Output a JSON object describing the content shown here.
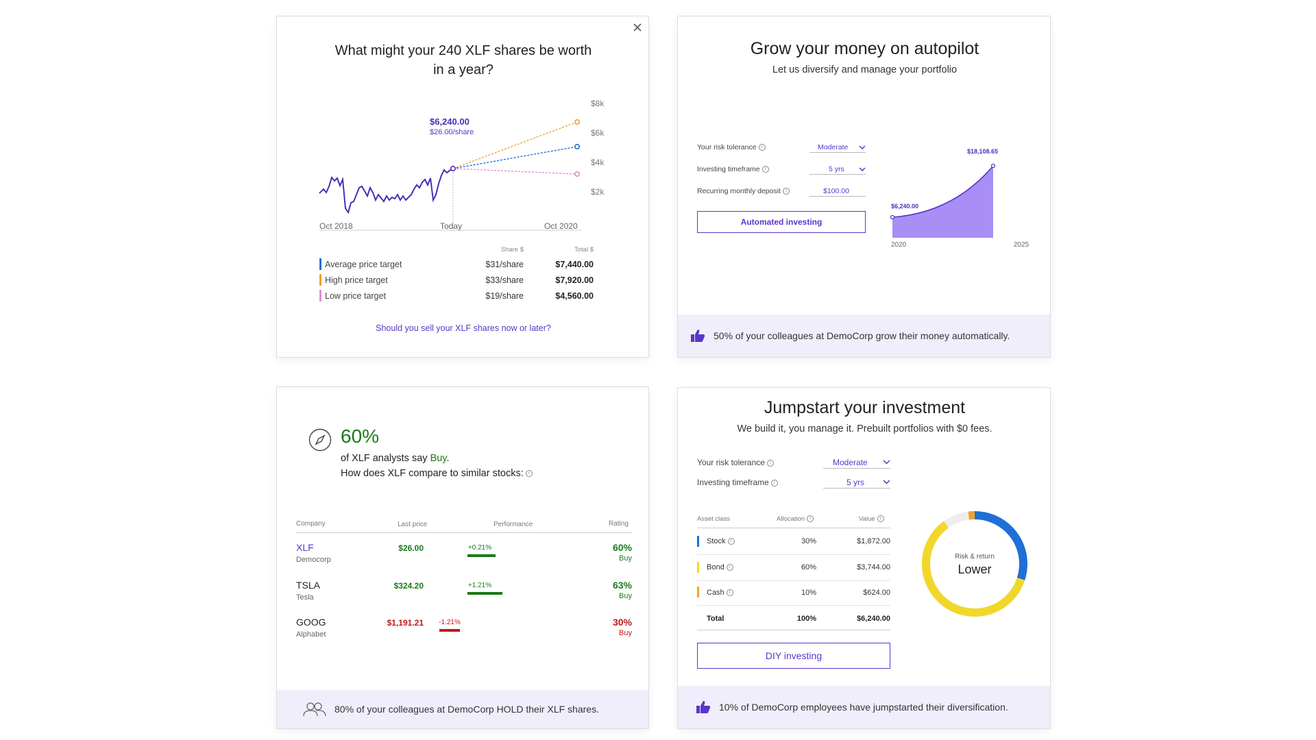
{
  "card1": {
    "title_line1": "What might your 240 XLF shares be worth",
    "title_line2": "in a year?",
    "tooltip_value": "$6,240.00",
    "tooltip_sub": "$26.00/share",
    "y_ticks": [
      "$8k",
      "$6k",
      "$4k",
      "$2k"
    ],
    "x_ticks": [
      "Oct 2018",
      "Today",
      "Oct 2020"
    ],
    "col_share": "Share $",
    "col_total": "Total $",
    "rows": [
      {
        "label": "Average price target",
        "share": "$31/share",
        "total": "$7,440.00",
        "color": "#1f6fd6"
      },
      {
        "label": "High price target",
        "share": "$33/share",
        "total": "$7,920.00",
        "color": "#f0a030"
      },
      {
        "label": "Low price target",
        "share": "$19/share",
        "total": "$4,560.00",
        "color": "#e58ad6"
      }
    ],
    "link": "Should you sell your XLF shares now or later?",
    "close_icon": "close-icon"
  },
  "card2": {
    "title": "Grow your money on autopilot",
    "subtitle": "Let us diversify and manage your portfolio",
    "risk_label": "Your risk tolerance",
    "risk_value": "Moderate",
    "timeframe_label": "Investing timeframe",
    "timeframe_value": "5 yrs",
    "deposit_label": "Recurring monthly deposit",
    "deposit_value": "$100.00",
    "button": "Automated investing",
    "chart_start_label": "$6,240.00",
    "chart_end_label": "$18,108.65",
    "x_start": "2020",
    "x_end": "2025",
    "footer": "50% of your colleagues at DemoCorp grow their money automatically."
  },
  "card3": {
    "percent": "60%",
    "line1_pre": "of XLF analysts say ",
    "line1_buy": "Buy",
    "line1_post": ".",
    "line2": "How does XLF compare to similar stocks:",
    "headers": {
      "company": "Company",
      "last": "Last price",
      "perf": "Performance",
      "rating": "Rating"
    },
    "rows": [
      {
        "ticker": "XLF",
        "name": "Democorp",
        "price": "$26.00",
        "perf": "+0.21%",
        "rating": "60%",
        "rating_label": "Buy"
      },
      {
        "ticker": "TSLA",
        "name": "Tesla",
        "price": "$324.20",
        "perf": "+1.21%",
        "rating": "63%",
        "rating_label": "Buy"
      },
      {
        "ticker": "GOOG",
        "name": "Alphabet",
        "price": "$1,191.21",
        "perf": "-1.21%",
        "rating": "30%",
        "rating_label": "Buy"
      }
    ],
    "footer": "80% of your colleagues at DemoCorp HOLD their XLF shares."
  },
  "card4": {
    "title": "Jumpstart your investment",
    "subtitle": "We build it, you manage it. Prebuilt portfolios with $0 fees.",
    "risk_label": "Your risk tolerance",
    "risk_value": "Moderate",
    "timeframe_label": "Investing timeframe",
    "timeframe_value": "5 yrs",
    "headers": {
      "asset": "Asset class",
      "alloc": "Allocation",
      "value": "Value"
    },
    "rows": [
      {
        "asset": "Stock",
        "alloc": "30%",
        "value": "$1,872.00",
        "color": "#1f6fd6"
      },
      {
        "asset": "Bond",
        "alloc": "60%",
        "value": "$3,744.00",
        "color": "#f2d72b"
      },
      {
        "asset": "Cash",
        "alloc": "10%",
        "value": "$624.00",
        "color": "#f0a030"
      }
    ],
    "total_label": "Total",
    "total_alloc": "100%",
    "total_value": "$6,240.00",
    "donut_label1": "Risk & return",
    "donut_label2": "Lower",
    "button": "DIY investing",
    "footer": "10% of DemoCorp employees have jumpstarted their diversification."
  }
}
